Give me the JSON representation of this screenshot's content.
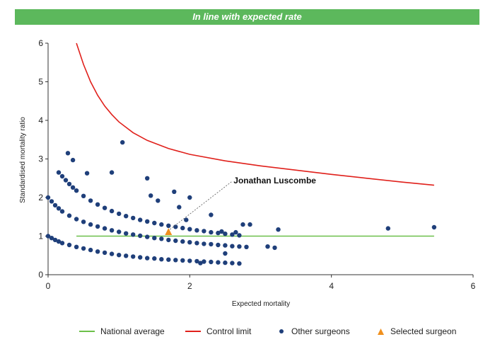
{
  "banner": {
    "text": "In line with expected rate",
    "color": "#5cb85c"
  },
  "chart_data": {
    "type": "scatter",
    "xlabel": "Expected mortality",
    "ylabel": "Standardised mortality ratio",
    "xlim": [
      0,
      6
    ],
    "ylim": [
      0,
      6
    ],
    "xticks": [
      0,
      2,
      4,
      6
    ],
    "yticks": [
      0,
      1,
      2,
      3,
      4,
      5,
      6
    ],
    "grid": false,
    "legend_position": "bottom",
    "colors": {
      "national": "#6cc04a",
      "control": "#e0201b",
      "others": "#1f3f7a",
      "selected": "#f0901e"
    },
    "national_average": {
      "name": "National average",
      "x": [
        0.4,
        5.45
      ],
      "y": [
        1,
        1
      ]
    },
    "control_limit": {
      "name": "Control limit",
      "x": [
        0.4,
        0.5,
        0.6,
        0.7,
        0.8,
        0.9,
        1.0,
        1.2,
        1.4,
        1.7,
        2.0,
        2.5,
        3.0,
        3.5,
        4.0,
        4.5,
        5.0,
        5.45
      ],
      "y": [
        6.0,
        5.45,
        5.0,
        4.65,
        4.37,
        4.15,
        3.96,
        3.68,
        3.48,
        3.27,
        3.12,
        2.95,
        2.82,
        2.71,
        2.6,
        2.5,
        2.4,
        2.32
      ]
    },
    "other_surgeons": {
      "name": "Other surgeons",
      "x": [
        0.0,
        0.05,
        0.1,
        0.15,
        0.2,
        0.3,
        0.4,
        0.5,
        0.6,
        0.7,
        0.8,
        0.9,
        1.0,
        1.1,
        1.2,
        1.3,
        1.4,
        1.5,
        1.6,
        1.7,
        1.8,
        1.9,
        2.0,
        2.1,
        2.2,
        2.3,
        2.4,
        2.5,
        2.6,
        2.7,
        0.0,
        0.05,
        0.1,
        0.15,
        0.2,
        0.3,
        0.4,
        0.5,
        0.6,
        0.7,
        0.8,
        0.9,
        1.0,
        1.1,
        1.2,
        1.3,
        1.4,
        1.5,
        1.6,
        1.7,
        1.8,
        1.9,
        2.0,
        2.1,
        2.2,
        2.3,
        2.4,
        2.5,
        2.6,
        2.7,
        0.15,
        0.2,
        0.25,
        0.3,
        0.35,
        0.4,
        0.5,
        0.6,
        0.7,
        0.8,
        0.9,
        1.0,
        1.1,
        1.2,
        1.3,
        1.4,
        1.5,
        1.6,
        1.7,
        1.8,
        1.9,
        2.0,
        2.1,
        2.2,
        2.3,
        2.4,
        2.5,
        2.6,
        2.7,
        0.28,
        0.35,
        0.55,
        0.9,
        1.05,
        1.4,
        1.45,
        1.55,
        1.78,
        1.85,
        2.0,
        2.3,
        2.45,
        2.65,
        2.75,
        2.8,
        2.85,
        3.1,
        3.2,
        3.25,
        4.8,
        5.45,
        1.95,
        2.15,
        2.5
      ],
      "y": [
        1.0,
        0.95,
        0.9,
        0.86,
        0.82,
        0.77,
        0.72,
        0.68,
        0.64,
        0.6,
        0.57,
        0.54,
        0.51,
        0.49,
        0.47,
        0.45,
        0.43,
        0.42,
        0.4,
        0.39,
        0.38,
        0.37,
        0.36,
        0.35,
        0.34,
        0.33,
        0.32,
        0.31,
        0.3,
        0.29,
        2.0,
        1.9,
        1.8,
        1.72,
        1.64,
        1.53,
        1.44,
        1.37,
        1.3,
        1.25,
        1.2,
        1.15,
        1.11,
        1.07,
        1.04,
        1.01,
        0.98,
        0.95,
        0.93,
        0.9,
        0.88,
        0.86,
        0.84,
        0.82,
        0.8,
        0.79,
        0.77,
        0.76,
        0.74,
        0.73,
        2.65,
        2.55,
        2.45,
        2.35,
        2.26,
        2.18,
        2.04,
        1.92,
        1.82,
        1.73,
        1.65,
        1.58,
        1.52,
        1.47,
        1.42,
        1.38,
        1.34,
        1.3,
        1.27,
        1.24,
        1.21,
        1.18,
        1.15,
        1.13,
        1.1,
        1.08,
        1.06,
        1.04,
        1.02,
        3.15,
        2.97,
        2.63,
        2.65,
        3.43,
        2.5,
        2.05,
        1.92,
        2.15,
        1.75,
        2.0,
        1.55,
        1.12,
        1.1,
        1.3,
        0.72,
        1.3,
        0.73,
        0.7,
        1.17,
        1.2,
        1.23,
        1.42,
        0.3,
        0.55
      ]
    },
    "selected_surgeon": {
      "name": "Selected surgeon",
      "label": "Jonathan Luscombe",
      "x": 1.7,
      "y": 1.1
    }
  }
}
